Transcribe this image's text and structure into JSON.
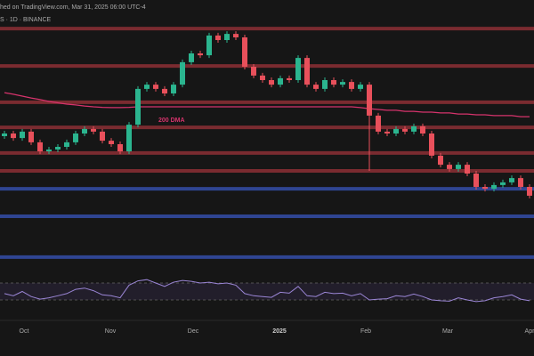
{
  "chart_data": {
    "type": "candlestick",
    "header": "hed on TradingView.com, Mar 31, 2025 06:00 UTC-4",
    "symbol": "S · 1D · BINANCE",
    "annotation": "200 DMA",
    "xlim": [
      -0.5,
      59.5
    ],
    "ylim": [
      0,
      100
    ],
    "xticks": [
      {
        "value": 2.2,
        "label": "Oct"
      },
      {
        "value": 11.9,
        "label": "Nov"
      },
      {
        "value": 21.2,
        "label": "Dec"
      },
      {
        "value": 30.9,
        "label": "2025"
      },
      {
        "value": 40.6,
        "label": "Feb"
      },
      {
        "value": 49.8,
        "label": "Mar"
      },
      {
        "value": 59,
        "label": "Apr"
      }
    ],
    "up_color": "#2bb58f",
    "down_color": "#e8505b",
    "open": [
      49,
      50,
      48.3,
      50.7,
      46.7,
      43.3,
      44,
      45,
      46.7,
      50,
      51.7,
      50.7,
      47.3,
      46,
      43.3,
      53.3,
      66.7,
      68.3,
      66.7,
      65,
      68.3,
      76.7,
      80,
      79.3,
      86.7,
      85,
      87.3,
      86,
      75,
      71.7,
      70,
      68.3,
      70.7,
      70,
      78.3,
      68.3,
      66.7,
      70,
      68.3,
      69.3,
      66.7,
      68.3,
      56.7,
      50.7,
      50,
      51.7,
      50.7,
      52.7,
      50,
      41.7,
      38.3,
      36.7,
      38.3,
      35,
      30,
      29.3,
      30.7,
      31.7,
      33.3,
      30
    ],
    "high": [
      51,
      51,
      51.7,
      51.7,
      47.7,
      45,
      46,
      47.7,
      51,
      52.7,
      52.7,
      51.7,
      48.3,
      47,
      54.3,
      67.7,
      69.3,
      69.3,
      67.7,
      69.3,
      77.7,
      81,
      81,
      87.7,
      87.7,
      88.3,
      88.3,
      87,
      76,
      72.7,
      71,
      71.7,
      71.7,
      79.3,
      79.3,
      69.3,
      71,
      71,
      70.3,
      70.3,
      69.3,
      69.3,
      57.7,
      51.7,
      52.7,
      52.7,
      53.7,
      53.7,
      51,
      42.7,
      39.3,
      39.3,
      39.3,
      36,
      31,
      31.7,
      32.7,
      34.3,
      34.3,
      31
    ],
    "low": [
      48,
      47.3,
      47.3,
      45.7,
      42.3,
      42.3,
      43,
      44,
      45.7,
      49,
      49.7,
      46.3,
      45,
      42.3,
      42.3,
      52.3,
      65.7,
      65.7,
      64,
      64,
      67.3,
      75.7,
      78.3,
      78.3,
      84,
      84,
      85,
      74,
      70.7,
      69,
      67.3,
      67.3,
      69,
      69,
      67.3,
      65.7,
      65.7,
      67.3,
      67.3,
      65.7,
      65.7,
      36,
      49.7,
      49,
      49,
      49.7,
      49.7,
      49,
      40.7,
      37.3,
      35.7,
      35.7,
      34,
      29,
      28.3,
      28.3,
      29.7,
      30.7,
      29,
      25.7
    ],
    "close": [
      50,
      48.3,
      50.7,
      46.7,
      43.3,
      44,
      45,
      46.7,
      50,
      51.7,
      50.7,
      47.3,
      46,
      43.3,
      53.3,
      66.7,
      68.3,
      66.7,
      65,
      68.3,
      76.7,
      80,
      79.3,
      86.7,
      85,
      87.3,
      86,
      75,
      71.7,
      70,
      68.3,
      70.7,
      70,
      78.3,
      68.3,
      66.7,
      70,
      68.3,
      69.3,
      66.7,
      68.3,
      56.7,
      50.7,
      50,
      51.7,
      50.7,
      52.7,
      50,
      41.7,
      38.3,
      36.7,
      38.3,
      35,
      30,
      29.3,
      30.7,
      31.7,
      33.3,
      30,
      26.7
    ],
    "dma": {
      "color": "#d6336c",
      "values": [
        65.3,
        64.7,
        64,
        63.3,
        62.7,
        62,
        61.5,
        61,
        60.7,
        60.3,
        60,
        59.8,
        59.7,
        59.7,
        59.8,
        60,
        60,
        60,
        60,
        60,
        60,
        60,
        60,
        60,
        60,
        60,
        60,
        60,
        60,
        60,
        60,
        60,
        60,
        60,
        60,
        60,
        60,
        60,
        60,
        60,
        59.7,
        59.3,
        59,
        58.7,
        58.7,
        58.3,
        58.3,
        58,
        58,
        57.7,
        57.7,
        57.3,
        57.3,
        57,
        57,
        56.7,
        56.7,
        56.7,
        56.3,
        56.3
      ]
    },
    "levels": [
      {
        "value": 89.3,
        "color": "#7a2b30"
      },
      {
        "value": 75.3,
        "color": "#7a2b30"
      },
      {
        "value": 61.7,
        "color": "#7a2b30"
      },
      {
        "value": 52.3,
        "color": "#7a2b30"
      },
      {
        "value": 42.7,
        "color": "#7a2b30"
      },
      {
        "value": 36,
        "color": "#7a2b30"
      },
      {
        "value": 29.3,
        "color": "#2f4592"
      },
      {
        "value": 19,
        "color": "#2f4592"
      },
      {
        "value": 3.7,
        "color": "#2f4592"
      }
    ],
    "rsi": {
      "color": "#9b86d6",
      "ylim": [
        0,
        100
      ],
      "bands": [
        70,
        30
      ],
      "values": [
        45,
        40,
        50,
        38,
        32,
        35,
        40,
        45,
        55,
        58,
        52,
        42,
        40,
        35,
        65,
        75,
        78,
        70,
        62,
        72,
        76,
        74,
        70,
        72,
        68,
        70,
        65,
        45,
        40,
        38,
        36,
        48,
        46,
        62,
        40,
        38,
        48,
        45,
        46,
        40,
        45,
        30,
        32,
        33,
        40,
        38,
        44,
        38,
        30,
        28,
        27,
        35,
        30,
        26,
        28,
        35,
        38,
        42,
        32,
        28
      ]
    }
  }
}
